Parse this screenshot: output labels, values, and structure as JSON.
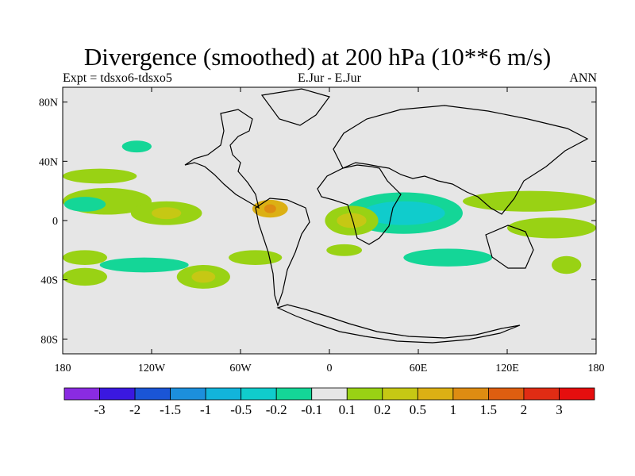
{
  "chart_data": {
    "type": "heatmap",
    "title": "Divergence (smoothed) at 200 hPa (10**6 m/s)",
    "subtitle_left": "Expt = tdsxo6-tdsxo5",
    "subtitle_center": "E.Jur - E.Jur",
    "subtitle_right": "ANN",
    "x_ticks": [
      {
        "value": -180,
        "label": "180"
      },
      {
        "value": -120,
        "label": "120W"
      },
      {
        "value": -60,
        "label": "60W"
      },
      {
        "value": 0,
        "label": "0"
      },
      {
        "value": 60,
        "label": "60E"
      },
      {
        "value": 120,
        "label": "120E"
      },
      {
        "value": 180,
        "label": "180"
      }
    ],
    "y_ticks": [
      {
        "value": 80,
        "label": "80N"
      },
      {
        "value": 40,
        "label": "40N"
      },
      {
        "value": 0,
        "label": "0"
      },
      {
        "value": -40,
        "label": "40S"
      },
      {
        "value": -80,
        "label": "80S"
      }
    ],
    "xlim": [
      -180,
      180
    ],
    "ylim": [
      -90,
      90
    ],
    "colorbar": {
      "labels": [
        "-3",
        "-2",
        "-1.5",
        "-1",
        "-0.5",
        "-0.2",
        "-0.1",
        "0.1",
        "0.2",
        "0.5",
        "1",
        "1.5",
        "2",
        "3"
      ],
      "colors": [
        "#8A2BE2",
        "#3A18E0",
        "#1A55D6",
        "#1C8FDC",
        "#12B4DB",
        "#10CCCC",
        "#14D697",
        "#E6E6E6",
        "#99D214",
        "#C6C814",
        "#DCB014",
        "#DE8C12",
        "#DE5E10",
        "#E02C14",
        "#E50E0E"
      ]
    },
    "regions": [
      {
        "lon": 135,
        "lat": 13,
        "rx": 45,
        "ry": 7,
        "level": "0.1"
      },
      {
        "lon": -150,
        "lat": 13,
        "rx": 30,
        "ry": 9,
        "level": "0.1"
      },
      {
        "lon": -155,
        "lat": 30,
        "rx": 25,
        "ry": 5,
        "level": "0.1"
      },
      {
        "lon": -165,
        "lat": 11,
        "rx": 14,
        "ry": 5,
        "level": "-0.1"
      },
      {
        "lon": 50,
        "lat": 5,
        "rx": 40,
        "ry": 14,
        "level": "-0.1"
      },
      {
        "lon": 50,
        "lat": 5,
        "rx": 28,
        "ry": 8,
        "level": "-0.2"
      },
      {
        "lon": 150,
        "lat": -5,
        "rx": 30,
        "ry": 7,
        "level": "0.1"
      },
      {
        "lon": -40,
        "lat": 8,
        "rx": 12,
        "ry": 6,
        "level": "0.5"
      },
      {
        "lon": -40,
        "lat": 8,
        "rx": 4,
        "ry": 3,
        "level": "1"
      },
      {
        "lon": 15,
        "lat": 0,
        "rx": 18,
        "ry": 10,
        "level": "0.1"
      },
      {
        "lon": 15,
        "lat": 0,
        "rx": 10,
        "ry": 5,
        "level": "0.2"
      },
      {
        "lon": -110,
        "lat": 5,
        "rx": 24,
        "ry": 8,
        "level": "0.1"
      },
      {
        "lon": -110,
        "lat": 5,
        "rx": 10,
        "ry": 4,
        "level": "0.2"
      },
      {
        "lon": -125,
        "lat": -30,
        "rx": 30,
        "ry": 5,
        "level": "-0.1"
      },
      {
        "lon": 80,
        "lat": -25,
        "rx": 30,
        "ry": 6,
        "level": "-0.1"
      },
      {
        "lon": -165,
        "lat": -25,
        "rx": 15,
        "ry": 5,
        "level": "0.1"
      },
      {
        "lon": -85,
        "lat": -38,
        "rx": 18,
        "ry": 8,
        "level": "0.1"
      },
      {
        "lon": -85,
        "lat": -38,
        "rx": 8,
        "ry": 4,
        "level": "0.2"
      },
      {
        "lon": -165,
        "lat": -38,
        "rx": 15,
        "ry": 6,
        "level": "0.1"
      },
      {
        "lon": 160,
        "lat": -30,
        "rx": 10,
        "ry": 6,
        "level": "0.1"
      },
      {
        "lon": -50,
        "lat": -25,
        "rx": 18,
        "ry": 5,
        "level": "0.1"
      },
      {
        "lon": -130,
        "lat": 50,
        "rx": 10,
        "ry": 4,
        "level": "-0.1"
      },
      {
        "lon": 10,
        "lat": -20,
        "rx": 12,
        "ry": 4,
        "level": "0.1"
      }
    ]
  }
}
